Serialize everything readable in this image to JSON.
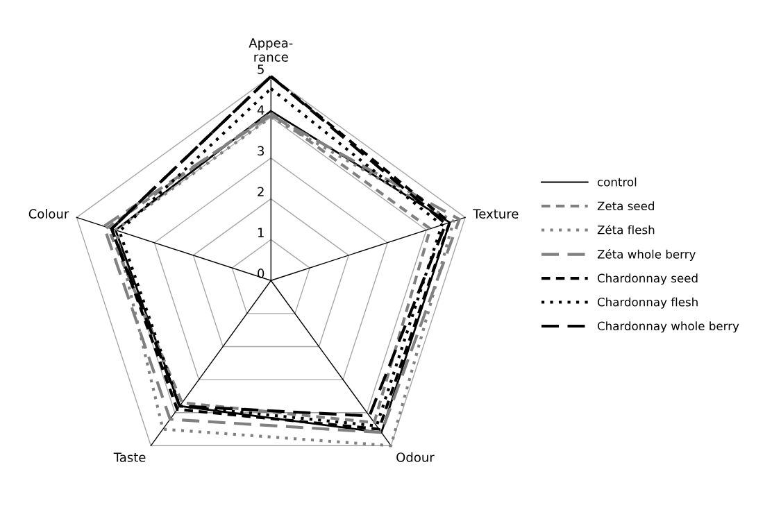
{
  "chart_data": {
    "type": "radar",
    "categories": [
      "Appea-\nrance",
      "Texture",
      "Odour",
      "Taste",
      "Colour"
    ],
    "ylim": [
      0,
      5
    ],
    "yticks": [
      0,
      1,
      2,
      3,
      4,
      5
    ],
    "grid": true,
    "legend": "right",
    "marker": "none",
    "series": [
      {
        "name": "control",
        "color": "#000000",
        "line_style": "solid",
        "values": [
          4.15,
          4.6,
          4.6,
          3.8,
          4.0
        ]
      },
      {
        "name": "Zeta seed",
        "color": "#808080",
        "line_style": "dashed",
        "values": [
          4.1,
          4.1,
          4.3,
          3.7,
          4.2
        ]
      },
      {
        "name": "Zéta flesh",
        "color": "#808080",
        "line_style": "dotted",
        "values": [
          4.0,
          4.7,
          5.0,
          4.5,
          4.0
        ]
      },
      {
        "name": "Zéta whole berry",
        "color": "#808080",
        "line_style": "long dashed",
        "values": [
          4.05,
          4.85,
          4.6,
          4.2,
          4.3
        ]
      },
      {
        "name": "Chardonnay seed",
        "color": "#000000",
        "line_style": "dashed",
        "values": [
          5.0,
          4.6,
          4.5,
          3.9,
          4.1
        ]
      },
      {
        "name": "Chardonnay flesh",
        "color": "#000000",
        "line_style": "dotted",
        "values": [
          4.7,
          4.4,
          4.4,
          3.8,
          3.9
        ]
      },
      {
        "name": "Chardonnay whole berry",
        "color": "#000000",
        "line_style": "long dashed",
        "values": [
          5.0,
          4.5,
          4.1,
          3.8,
          4.1
        ]
      }
    ]
  }
}
